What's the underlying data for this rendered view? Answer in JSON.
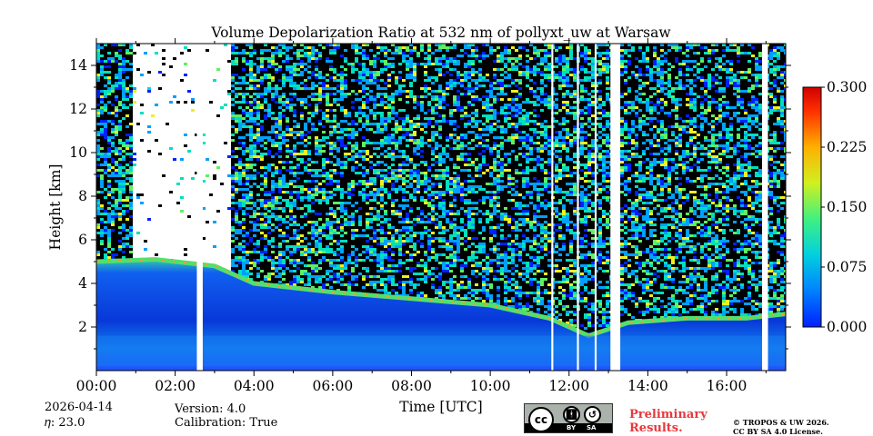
{
  "chart_data": {
    "type": "heatmap",
    "title": "Volume Depolarization Ratio at 532 nm of pollyxt_uw at Warsaw",
    "xlabel": "Time [UTC]",
    "ylabel": "Height [km]",
    "x_ticks": [
      "00:00",
      "02:00",
      "04:00",
      "06:00",
      "08:00",
      "10:00",
      "12:00",
      "14:00",
      "16:00"
    ],
    "x_tick_hours": [
      0,
      2,
      4,
      6,
      8,
      10,
      12,
      14,
      16
    ],
    "xlim_hours": [
      0,
      17.5
    ],
    "y_ticks": [
      "2",
      "4",
      "6",
      "8",
      "10",
      "12",
      "14"
    ],
    "y_tick_values": [
      2,
      4,
      6,
      8,
      10,
      12,
      14
    ],
    "ylim_km": [
      0,
      15
    ],
    "colorbar": {
      "ticks": [
        "0.000",
        "0.075",
        "0.150",
        "0.225",
        "0.300"
      ],
      "tick_values": [
        0,
        0.075,
        0.15,
        0.225,
        0.3
      ],
      "range": [
        0,
        0.3
      ],
      "colors": [
        "#0020ff",
        "#00a0ff",
        "#00e0c0",
        "#60f060",
        "#f0f020",
        "#ffa000",
        "#ff3000",
        "#c00000"
      ]
    },
    "features": {
      "boundary_layer_top_km": [
        [
          0,
          5.0
        ],
        [
          1.5,
          5.1
        ],
        [
          3.0,
          4.8
        ],
        [
          4.0,
          4.0
        ],
        [
          6.0,
          3.6
        ],
        [
          8.0,
          3.3
        ],
        [
          10.0,
          3.0
        ],
        [
          11.5,
          2.4
        ],
        [
          12.5,
          1.6
        ],
        [
          13.5,
          2.2
        ],
        [
          15.0,
          2.4
        ],
        [
          16.5,
          2.4
        ],
        [
          17.5,
          2.6
        ]
      ],
      "gap_hours": [
        [
          2.55,
          2.7
        ],
        [
          11.55,
          11.6
        ],
        [
          12.2,
          12.25
        ],
        [
          12.65,
          12.7
        ],
        [
          13.05,
          13.3
        ],
        [
          16.9,
          17.05
        ]
      ]
    }
  },
  "footer": {
    "date": "2026-04-14",
    "eta": "𝜂: 23.0",
    "version": "Version: 4.0",
    "calibration": "Calibration: True",
    "preliminary_line1": "Preliminary",
    "preliminary_line2": "Results.",
    "copyright_line1": "© TROPOS & UW 2026.",
    "copyright_line2": "CC BY SA 4.0 License.",
    "license_badge": {
      "cc": "cc",
      "by": "BY",
      "sa": "SA"
    }
  }
}
